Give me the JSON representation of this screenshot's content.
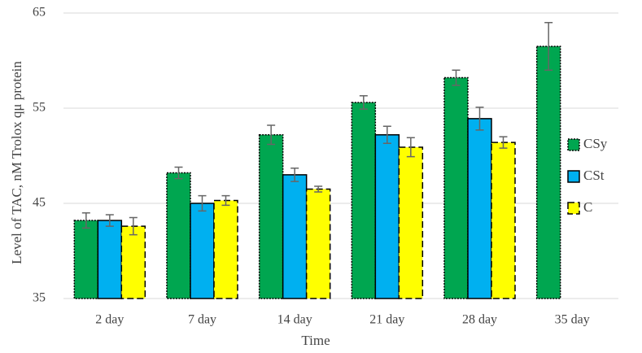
{
  "chart_data": {
    "type": "bar",
    "x_label": "Time",
    "y_label": "Level of TAC, nM Trolox qμ protein",
    "categories": [
      "2 day",
      "7 day",
      "14 day",
      "21 day",
      "28 day",
      "35 day"
    ],
    "series": [
      {
        "name": "CSy",
        "color": "#00a650",
        "border": "dotted",
        "values": [
          43.2,
          48.2,
          52.2,
          55.6,
          58.2,
          61.5
        ],
        "errors": [
          0.8,
          0.6,
          1.0,
          0.7,
          0.8,
          2.5
        ]
      },
      {
        "name": "CSt",
        "color": "#00b0f0",
        "border": "solid",
        "values": [
          43.2,
          45.0,
          48.0,
          52.2,
          53.9,
          null
        ],
        "errors": [
          0.6,
          0.8,
          0.7,
          0.9,
          1.2,
          null
        ]
      },
      {
        "name": "C",
        "color": "#ffff00",
        "border": "dashed",
        "values": [
          42.6,
          45.3,
          46.5,
          50.9,
          51.4,
          null
        ],
        "errors": [
          0.9,
          0.5,
          0.3,
          1.0,
          0.6,
          null
        ]
      }
    ],
    "ylim": [
      35,
      65
    ],
    "yticks": [
      35,
      45,
      55,
      65
    ],
    "grid": true,
    "legend": "right"
  }
}
